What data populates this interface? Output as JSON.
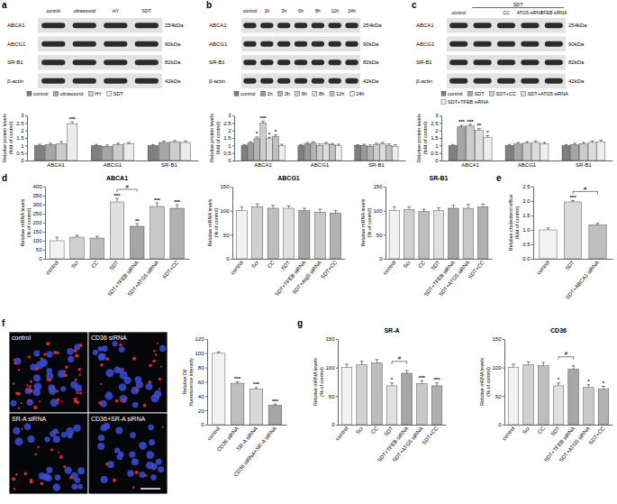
{
  "chart_data": [
    {
      "type": "bar",
      "categories": [
        "ABCA1",
        "ABCG1",
        "SR-B1"
      ],
      "series": [
        {
          "name": "control",
          "color": "#7f7f7f",
          "values": [
            1,
            1,
            1
          ],
          "errors": [
            0.08,
            0.07,
            0.06
          ]
        },
        {
          "name": "ultrasound",
          "color": "#a6a6a6",
          "values": [
            1.05,
            0.95,
            1.2
          ],
          "errors": [
            0.1,
            0.08,
            0.1
          ]
        },
        {
          "name": "HY",
          "color": "#cccccc",
          "values": [
            1.1,
            1.05,
            1.25
          ],
          "errors": [
            0.15,
            0.1,
            0.08
          ]
        },
        {
          "name": "SDT",
          "color": "#ececec",
          "values": [
            2.45,
            1.1,
            1.2
          ],
          "errors": [
            0.12,
            0.1,
            0.1
          ]
        }
      ],
      "ylim": [
        0,
        3
      ],
      "yticks": [
        0,
        0.5,
        1,
        1.5,
        2,
        2.5,
        3
      ],
      "y_label": [
        "Relative protein levels",
        "(fold of control)"
      ],
      "legend": "top",
      "annotations": [
        {
          "text": "***",
          "category": "ABCA1",
          "series": "SDT"
        }
      ]
    },
    {
      "type": "bar",
      "categories": [
        "ABCA1",
        "ABCG1",
        "SR-B1"
      ],
      "series": [
        {
          "name": "control",
          "color": "#7f7f7f",
          "values": [
            1,
            1,
            1
          ],
          "errors": [
            0.06,
            0.06,
            0.05
          ]
        },
        {
          "name": "1h",
          "color": "#999999",
          "values": [
            1.15,
            1.1,
            1.0
          ],
          "errors": [
            0.1,
            0.1,
            0.08
          ]
        },
        {
          "name": "3h",
          "color": "#b2b2b2",
          "values": [
            1.45,
            1.15,
            0.95
          ],
          "errors": [
            0.12,
            0.1,
            0.08
          ]
        },
        {
          "name": "6h",
          "color": "#cccccc",
          "values": [
            2.5,
            1.0,
            1.05
          ],
          "errors": [
            0.12,
            0.1,
            0.1
          ]
        },
        {
          "name": "8h",
          "color": "#dddddd",
          "values": [
            1.45,
            1.1,
            1.1
          ],
          "errors": [
            0.1,
            0.1,
            0.1
          ]
        },
        {
          "name": "12h",
          "color": "#bfbfbf",
          "values": [
            1.6,
            1.05,
            1.0
          ],
          "errors": [
            0.1,
            0.08,
            0.1
          ]
        },
        {
          "name": "24h",
          "color": "#eeeeee",
          "values": [
            1.0,
            1.0,
            0.95
          ],
          "errors": [
            0.08,
            0.08,
            0.1
          ]
        }
      ],
      "ylim": [
        0,
        3
      ],
      "yticks": [
        0,
        0.5,
        1,
        1.5,
        2,
        2.5,
        3
      ],
      "y_label": [
        "Relative protein levels",
        "(fold of control)"
      ],
      "legend": "top",
      "annotations": [
        {
          "text": "*",
          "category": "ABCA1",
          "series": "3h"
        },
        {
          "text": "***",
          "category": "ABCA1",
          "series": "6h"
        },
        {
          "text": "*",
          "category": "ABCA1",
          "series": "8h"
        },
        {
          "text": "*",
          "category": "ABCA1",
          "series": "12h"
        }
      ]
    },
    {
      "type": "bar",
      "categories": [
        "ABCA1",
        "ABCG1",
        "SR-B1"
      ],
      "series": [
        {
          "name": "control",
          "color": "#7f7f7f",
          "values": [
            1,
            1,
            1
          ],
          "errors": [
            0.06,
            0.06,
            0.06
          ]
        },
        {
          "name": "SDT",
          "color": "#a6a6a6",
          "values": [
            2.25,
            1.1,
            1.05
          ],
          "errors": [
            0.1,
            0.1,
            0.1
          ]
        },
        {
          "name": "SDT+CC",
          "color": "#cccccc",
          "values": [
            2.3,
            1.15,
            1.1
          ],
          "errors": [
            0.1,
            0.1,
            0.1
          ]
        },
        {
          "name": "SDT+ATG5 siRNA",
          "color": "#dddddd",
          "values": [
            2.0,
            1.2,
            1.2
          ],
          "errors": [
            0.12,
            0.1,
            0.1
          ]
        },
        {
          "name": "SDT+TFEB siRNA",
          "color": "#eeeeee",
          "values": [
            1.55,
            1.1,
            1.25
          ],
          "errors": [
            0.1,
            0.1,
            0.1
          ]
        }
      ],
      "ylim": [
        0,
        3
      ],
      "yticks": [
        0,
        0.5,
        1,
        1.5,
        2,
        2.5,
        3
      ],
      "y_label": [
        "Relative protein levels",
        "(fold of control)"
      ],
      "legend": "top",
      "annotations": [
        {
          "text": "***",
          "category": "ABCA1",
          "series": "SDT"
        },
        {
          "text": "***",
          "category": "ABCA1",
          "series": "SDT+CC"
        },
        {
          "text": "**",
          "category": "ABCA1",
          "series": "SDT+ATG5 siRNA"
        },
        {
          "text": "*",
          "category": "ABCA1",
          "series": "SDT+TFEB siRNA"
        }
      ]
    },
    {
      "type": "bar",
      "title": "ABCA1",
      "categories": [
        "control",
        "Scr",
        "CC",
        "SDT",
        "SDT+TFEB siRNA",
        "SDT+ATG5 siRNA",
        "SDT+CC"
      ],
      "values": [
        100,
        120,
        115,
        315,
        180,
        290,
        280
      ],
      "errors": [
        20,
        10,
        10,
        20,
        15,
        20,
        20
      ],
      "colors": [
        "#f2f2f2",
        "#d0d0d0",
        "#bdbdbd",
        "#e0e0e0",
        "#a6a6a6",
        "#c8c8c8",
        "#b0b0b0"
      ],
      "ylim": [
        0,
        400
      ],
      "yticks": [
        0,
        50,
        100,
        150,
        200,
        250,
        300,
        350,
        400
      ],
      "y_label": [
        "Relative mRNA levels",
        "(% of control)"
      ],
      "annotations": [
        {
          "text": "***",
          "category": "SDT"
        },
        {
          "text": "**",
          "category": "SDT+TFEB siRNA"
        },
        {
          "text": "***",
          "category": "SDT+ATG5 siRNA"
        },
        {
          "text": "***",
          "category": "SDT+CC"
        },
        {
          "text": "#",
          "from": "SDT",
          "to": "SDT+TFEB siRNA"
        }
      ]
    },
    {
      "type": "bar",
      "title": "ABCG1",
      "categories": [
        "control",
        "Scr",
        "CC",
        "SDT",
        "SDT+TFEB siRNA",
        "SDT+Atg5 siRNA",
        "SDT+CC"
      ],
      "values": [
        100,
        108,
        105,
        105,
        100,
        97,
        95
      ],
      "errors": [
        8,
        6,
        6,
        5,
        5,
        6,
        5
      ],
      "colors": [
        "#f2f2f2",
        "#d0d0d0",
        "#bdbdbd",
        "#e0e0e0",
        "#a6a6a6",
        "#c8c8c8",
        "#b0b0b0"
      ],
      "ylim": [
        0,
        150
      ],
      "yticks": [
        0,
        50,
        100,
        150
      ],
      "y_label": [
        "Relative mRNA levels",
        "(% of control)"
      ]
    },
    {
      "type": "bar",
      "title": "SR-B1",
      "categories": [
        "control",
        "Scr",
        "CC",
        "SDT",
        "SDT+TFEB siRNA",
        "SDT+ATG5 siRNA",
        "SDT+CC"
      ],
      "values": [
        100,
        102,
        98,
        100,
        105,
        105,
        108
      ],
      "errors": [
        8,
        6,
        5,
        6,
        6,
        8,
        6
      ],
      "colors": [
        "#f2f2f2",
        "#d0d0d0",
        "#bdbdbd",
        "#e0e0e0",
        "#a6a6a6",
        "#c8c8c8",
        "#b0b0b0"
      ],
      "ylim": [
        0,
        150
      ],
      "yticks": [
        0,
        50,
        100,
        150
      ],
      "y_label": [
        "Relative mRNA levels",
        "(% of control)"
      ]
    },
    {
      "type": "bar",
      "categories": [
        "control",
        "SDT",
        "SDT+ABCA1 siRNA"
      ],
      "values": [
        1.0,
        1.97,
        1.18
      ],
      "errors": [
        0.07,
        0.05,
        0.05
      ],
      "colors": [
        "#f2f2f2",
        "#d9d9d9",
        "#bfbfbf"
      ],
      "ylim": [
        0,
        2.5
      ],
      "yticks": [
        {
          "value": 0,
          "label": "0.0"
        },
        {
          "value": 0.5,
          "label": "0.5"
        },
        {
          "value": 1,
          "label": "1.0"
        },
        {
          "value": 1.5,
          "label": "1.5"
        },
        {
          "value": 2,
          "label": "2.0"
        },
        {
          "value": 2.5,
          "label": "2.5"
        }
      ],
      "y_label": [
        "Relative cholesterol efflux",
        "(fold of control)"
      ],
      "annotations": [
        {
          "text": "***",
          "category": "SDT"
        },
        {
          "text": "#",
          "from": "SDT",
          "to": "SDT+ABCA1 siRNA"
        }
      ]
    },
    {
      "type": "bar",
      "categories": [
        "control",
        "CD36 siRNA",
        "SR-A siRNA",
        "CD36 siRNA+SR-A siRNA"
      ],
      "values": [
        100,
        58,
        50,
        27
      ],
      "errors": [
        2,
        2,
        2,
        2
      ],
      "colors": [
        "#f2f2f2",
        "#bfbfbf",
        "#d9d9d9",
        "#a6a6a6"
      ],
      "ylim": [
        0,
        120
      ],
      "yticks": [
        0,
        20,
        40,
        60,
        80,
        100,
        120
      ],
      "y_label": [
        "Relative Dil",
        "fluorescence intensity"
      ],
      "annotations": [
        {
          "text": "***",
          "category": "CD36 siRNA"
        },
        {
          "text": "***",
          "category": "SR-A siRNA"
        },
        {
          "text": "***",
          "category": "CD36 siRNA+SR-A siRNA"
        }
      ]
    },
    {
      "type": "bar",
      "title": "SR-A",
      "categories": [
        "control",
        "Scr",
        "CC",
        "SDT",
        "SDT+TFEB siRNA",
        "SDT+ATG5 siRNA",
        "SDT+CC"
      ],
      "values": [
        100,
        105,
        108,
        68,
        90,
        72,
        68
      ],
      "errors": [
        6,
        6,
        6,
        5,
        5,
        5,
        5
      ],
      "colors": [
        "#f2f2f2",
        "#d0d0d0",
        "#bdbdbd",
        "#e0e0e0",
        "#a6a6a6",
        "#c8c8c8",
        "#b0b0b0"
      ],
      "ylim": [
        0,
        150
      ],
      "yticks": [
        0,
        50,
        100,
        150
      ],
      "y_label": [
        "Relative mRNA levels",
        "(% of control)"
      ],
      "annotations": [
        {
          "text": "*",
          "category": "SDT"
        },
        {
          "text": "***",
          "category": "SDT+ATG5 siRNA"
        },
        {
          "text": "***",
          "category": "SDT+CC"
        },
        {
          "text": "#",
          "from": "SDT",
          "to": "SDT+TFEB siRNA"
        }
      ]
    },
    {
      "type": "bar",
      "title": "CD36",
      "categories": [
        "control",
        "Scr",
        "CC",
        "SDT",
        "SDT+TFEB siRNA",
        "SDT+ATG5 siRNA",
        "SDT+CC"
      ],
      "values": [
        100,
        105,
        103,
        68,
        97,
        65,
        62
      ],
      "errors": [
        6,
        5,
        6,
        5,
        6,
        5,
        5
      ],
      "colors": [
        "#f2f2f2",
        "#d0d0d0",
        "#bdbdbd",
        "#e0e0e0",
        "#a6a6a6",
        "#c8c8c8",
        "#b0b0b0"
      ],
      "ylim": [
        0,
        150
      ],
      "yticks": [
        0,
        50,
        100,
        150
      ],
      "y_label": [
        "Relative mRNA levels",
        "(% of control)"
      ],
      "annotations": [
        {
          "text": "*",
          "category": "SDT"
        },
        {
          "text": "*",
          "category": "SDT+ATG5 siRNA"
        },
        {
          "text": "*",
          "category": "SDT+CC"
        },
        {
          "text": "#",
          "from": "SDT",
          "to": "SDT+TFEB siRNA"
        }
      ]
    }
  ],
  "figure": {
    "panels": [
      "a",
      "b",
      "c",
      "d",
      "e",
      "f",
      "g"
    ],
    "blots": [
      {
        "lanes": [
          "control",
          "ultrasound",
          "HY",
          "SDT"
        ],
        "rows": [
          {
            "label": "ABCA1",
            "size": "254kDa"
          },
          {
            "label": "ABCG1",
            "size": "90kDa"
          },
          {
            "label": "SR-B1",
            "size": "82kDa"
          },
          {
            "label": "β-actin",
            "size": "42kDa"
          }
        ]
      },
      {
        "lanes": [
          "control",
          "1h",
          "3h",
          "6h",
          "8h",
          "12h",
          "24h"
        ],
        "rows": [
          {
            "label": "ABCA1",
            "size": "254kDa"
          },
          {
            "label": "ABCG1",
            "size": "90kDa"
          },
          {
            "label": "SR-B1",
            "size": "82kDa"
          },
          {
            "label": "β-actin",
            "size": "42kDa"
          }
        ]
      },
      {
        "group": "SDT",
        "lanes": [
          "control",
          null,
          "CC",
          "ATG5 siRNA",
          "TFEB siRNA"
        ],
        "rows": [
          {
            "label": "ABCA1",
            "size": "254kDa"
          },
          {
            "label": "ABCG1",
            "size": "90kDa"
          },
          {
            "label": "SR-B1",
            "size": "82kDa"
          },
          {
            "label": "β-actin",
            "size": "42kDa"
          }
        ]
      }
    ],
    "micrograph": {
      "labels": [
        "control",
        "CD36 siRNA",
        "SR-A siRNA",
        "CD36+SR-A siRNA"
      ]
    }
  }
}
